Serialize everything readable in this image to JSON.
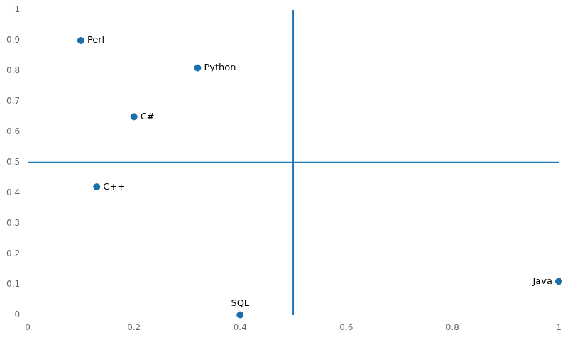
{
  "chart_data": {
    "type": "scatter",
    "x": [
      0.1,
      0.32,
      0.2,
      0.13,
      0.4,
      1.0
    ],
    "values": [
      0.9,
      0.81,
      0.65,
      0.42,
      0.0,
      0.11
    ],
    "labels": [
      "Perl",
      "Python",
      "C#",
      "C++",
      "SQL",
      "Java"
    ],
    "color": "#1b6faa",
    "reference_lines": {
      "x": 0.5,
      "y": 0.5,
      "color": "#2176b8"
    },
    "xlim": [
      0,
      1.0
    ],
    "ylim": [
      0,
      1.0
    ],
    "xticks": [
      0,
      0.2,
      0.4,
      0.6,
      0.8,
      1
    ],
    "yticks": [
      0,
      0.1,
      0.2,
      0.3,
      0.4,
      0.5,
      0.6,
      0.7,
      0.8,
      0.9,
      1
    ],
    "grid": false
  }
}
